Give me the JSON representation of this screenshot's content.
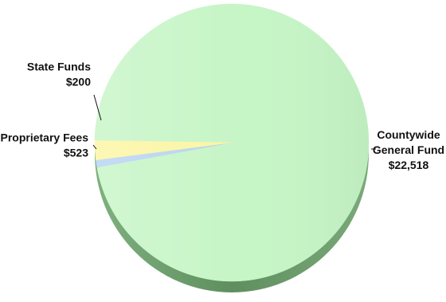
{
  "chart_data": {
    "type": "pie",
    "title": "",
    "slices": [
      {
        "name": "Countywide General Fund",
        "label_lines": [
          "Countywide",
          "General Fund"
        ],
        "value": 22518,
        "value_label": "$22,518",
        "color": "#c6f5c6"
      },
      {
        "name": "State Funds",
        "label_lines": [
          "State Funds"
        ],
        "value": 200,
        "value_label": "$200",
        "color": "#b7d3f2"
      },
      {
        "name": "Proprietary Fees",
        "label_lines": [
          "Proprietary Fees"
        ],
        "value": 523,
        "value_label": "$523",
        "color": "#fbf5a2"
      }
    ],
    "style": "3d-tilted-pie",
    "legend": "none",
    "labels": "outside-with-leader-lines"
  }
}
